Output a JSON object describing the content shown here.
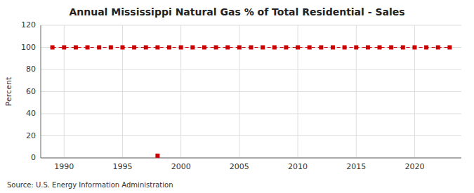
{
  "chart_data": {
    "type": "line",
    "title": "Annual Mississippi Natural Gas % of Total Residential - Sales",
    "ylabel": "Percent",
    "source": "Source: U.S. Energy Information Administration",
    "xlim": [
      1988,
      2024
    ],
    "ylim": [
      0,
      120
    ],
    "xticks": [
      1990,
      1995,
      2000,
      2005,
      2010,
      2015,
      2020
    ],
    "yticks": [
      0,
      20,
      40,
      60,
      80,
      100,
      120
    ],
    "grid": true,
    "series": [
      {
        "color": "#cc0000",
        "marker": "square",
        "line_style": "dashed",
        "x": [
          1989,
          1990,
          1991,
          1992,
          1993,
          1994,
          1995,
          1996,
          1997,
          1998,
          1999,
          2000,
          2001,
          2002,
          2003,
          2004,
          2005,
          2006,
          2007,
          2008,
          2009,
          2010,
          2011,
          2012,
          2013,
          2014,
          2015,
          2016,
          2017,
          2018,
          2019,
          2020,
          2021,
          2022,
          2023
        ],
        "values": [
          100,
          100,
          100,
          100,
          100,
          100,
          100,
          100,
          100,
          100,
          100,
          100,
          100,
          100,
          100,
          100,
          100,
          100,
          100,
          100,
          100,
          100,
          100,
          100,
          100,
          100,
          100,
          100,
          100,
          100,
          100,
          100,
          100,
          100,
          100
        ]
      },
      {
        "type": "scatter",
        "color": "#cc0000",
        "marker": "square",
        "x": [
          1998
        ],
        "values": [
          2
        ]
      }
    ]
  }
}
